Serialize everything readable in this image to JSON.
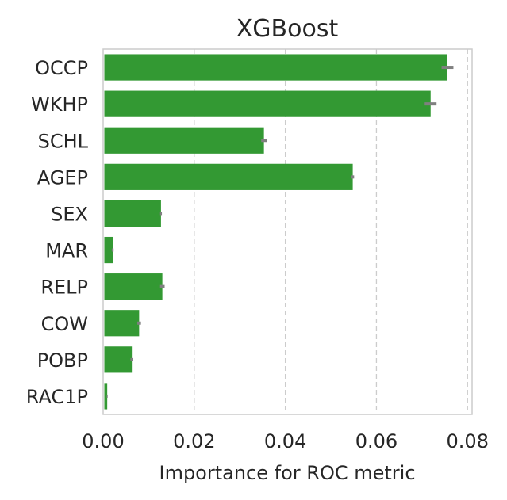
{
  "chart_data": {
    "type": "bar",
    "orientation": "horizontal",
    "title": "XGBoost",
    "xlabel": "Importance for ROC metric",
    "ylabel": "",
    "xlim": [
      0.0,
      0.081
    ],
    "xticks": [
      "0.00",
      "0.02",
      "0.04",
      "0.06",
      "0.08"
    ],
    "xtick_values": [
      0.0,
      0.02,
      0.04,
      0.06,
      0.08
    ],
    "grid": "x, dashed",
    "bar_color": "#339933",
    "error_color": "#808080",
    "categories": [
      "OCCP",
      "WKHP",
      "SCHL",
      "AGEP",
      "SEX",
      "MAR",
      "RELP",
      "COW",
      "POBP",
      "RAC1P"
    ],
    "values": [
      0.0756,
      0.0719,
      0.0353,
      0.0548,
      0.0127,
      0.0021,
      0.013,
      0.0079,
      0.0063,
      0.0009
    ],
    "errors": [
      0.0013,
      0.0013,
      0.0006,
      0.0003,
      0.0002,
      0.0002,
      0.0005,
      0.0004,
      0.0003,
      0.0001
    ]
  }
}
